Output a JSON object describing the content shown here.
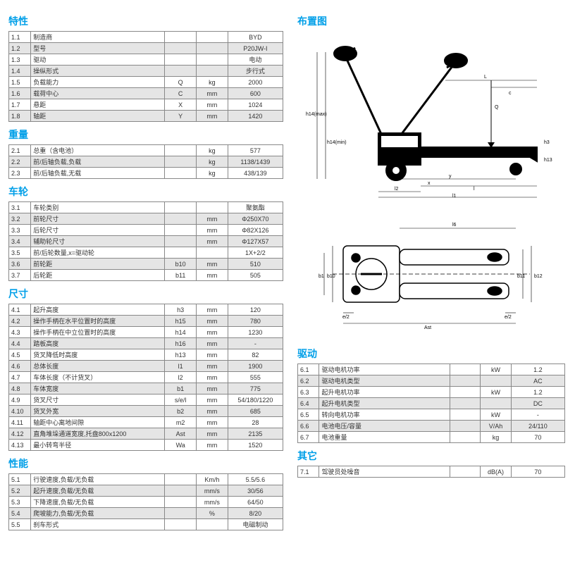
{
  "colors": {
    "accent": "#009fe8",
    "grid": "#888888",
    "alt_row": "#e5e5e5",
    "text": "#333333"
  },
  "left": [
    {
      "title": "特性",
      "rows": [
        {
          "n": "1.1",
          "label": "制造商",
          "sym": "",
          "unit": "",
          "val": "BYD"
        },
        {
          "n": "1.2",
          "label": "型号",
          "sym": "",
          "unit": "",
          "val": "P20JW-I"
        },
        {
          "n": "1.3",
          "label": "驱动",
          "sym": "",
          "unit": "",
          "val": "电动"
        },
        {
          "n": "1.4",
          "label": "操纵形式",
          "sym": "",
          "unit": "",
          "val": "步行式"
        },
        {
          "n": "1.5",
          "label": "负载能力",
          "sym": "Q",
          "unit": "kg",
          "val": "2000"
        },
        {
          "n": "1.6",
          "label": "载荷中心",
          "sym": "C",
          "unit": "mm",
          "val": "600"
        },
        {
          "n": "1.7",
          "label": "悬距",
          "sym": "X",
          "unit": "mm",
          "val": "1024"
        },
        {
          "n": "1.8",
          "label": "轴距",
          "sym": "Y",
          "unit": "mm",
          "val": "1420"
        }
      ]
    },
    {
      "title": "重量",
      "rows": [
        {
          "n": "2.1",
          "label": "总重（含电池）",
          "sym": "",
          "unit": "kg",
          "val": "577"
        },
        {
          "n": "2.2",
          "label": "前/后轴负载,负载",
          "sym": "",
          "unit": "kg",
          "val": "1138/1439"
        },
        {
          "n": "2.3",
          "label": "前/后轴负载,无载",
          "sym": "",
          "unit": "kg",
          "val": "438/139"
        }
      ]
    },
    {
      "title": "车轮",
      "rows": [
        {
          "n": "3.1",
          "label": "车轮类别",
          "sym": "",
          "unit": "",
          "val": "聚氨酯"
        },
        {
          "n": "3.2",
          "label": "前轮尺寸",
          "sym": "",
          "unit": "mm",
          "val": "Φ250X70"
        },
        {
          "n": "3.3",
          "label": "后轮尺寸",
          "sym": "",
          "unit": "mm",
          "val": "Φ82X126"
        },
        {
          "n": "3.4",
          "label": "辅助轮尺寸",
          "sym": "",
          "unit": "mm",
          "val": "Φ127X57"
        },
        {
          "n": "3.5",
          "label": "前/后轮数量,x=驱动轮",
          "sym": "",
          "unit": "",
          "val": "1X+2/2"
        },
        {
          "n": "3.6",
          "label": "前轮距",
          "sym": "b10",
          "unit": "mm",
          "val": "510"
        },
        {
          "n": "3.7",
          "label": "后轮距",
          "sym": "b11",
          "unit": "mm",
          "val": "505"
        }
      ]
    },
    {
      "title": "尺寸",
      "rows": [
        {
          "n": "4.1",
          "label": "起升高度",
          "sym": "h3",
          "unit": "mm",
          "val": "120"
        },
        {
          "n": "4.2",
          "label": "操作手柄在水平位置时的高度",
          "sym": "h15",
          "unit": "mm",
          "val": "780"
        },
        {
          "n": "4.3",
          "label": "操作手柄在中立位置时的高度",
          "sym": "h14",
          "unit": "mm",
          "val": "1230"
        },
        {
          "n": "4.4",
          "label": "踏板高度",
          "sym": "h16",
          "unit": "mm",
          "val": "-"
        },
        {
          "n": "4.5",
          "label": "货叉降低时高度",
          "sym": "h13",
          "unit": "mm",
          "val": "82"
        },
        {
          "n": "4.6",
          "label": "总体长度",
          "sym": "l1",
          "unit": "mm",
          "val": "1900"
        },
        {
          "n": "4.7",
          "label": "车体长度（不计货叉）",
          "sym": "l2",
          "unit": "mm",
          "val": "555"
        },
        {
          "n": "4.8",
          "label": "车体宽度",
          "sym": "b1",
          "unit": "mm",
          "val": "775"
        },
        {
          "n": "4.9",
          "label": "货叉尺寸",
          "sym": "s/e/l",
          "unit": "mm",
          "val": "54/180/1220"
        },
        {
          "n": "4.10",
          "label": "货叉外宽",
          "sym": "b2",
          "unit": "mm",
          "val": "685"
        },
        {
          "n": "4.11",
          "label": "轴距中心离地间隙",
          "sym": "m2",
          "unit": "mm",
          "val": "28"
        },
        {
          "n": "4.12",
          "label": "直角堆垛通道宽度,托盘800x1200",
          "sym": "Ast",
          "unit": "mm",
          "val": "2135"
        },
        {
          "n": "4.13",
          "label": "最小转弯半径",
          "sym": "Wa",
          "unit": "mm",
          "val": "1520"
        }
      ]
    },
    {
      "title": "性能",
      "rows": [
        {
          "n": "5.1",
          "label": "行驶速度,负载/无负载",
          "sym": "",
          "unit": "Km/h",
          "val": "5.5/5.6"
        },
        {
          "n": "5.2",
          "label": "起升速度,负载/无负载",
          "sym": "",
          "unit": "mm/s",
          "val": "30/56"
        },
        {
          "n": "5.3",
          "label": "下降速度,负载/无负载",
          "sym": "",
          "unit": "mm/s",
          "val": "64/50"
        },
        {
          "n": "5.4",
          "label": "爬坡能力,负载/无负载",
          "sym": "",
          "unit": "%",
          "val": "8/20"
        },
        {
          "n": "5.5",
          "label": "刹车形式",
          "sym": "",
          "unit": "",
          "val": "电磁制动"
        }
      ]
    }
  ],
  "right": {
    "layout_title": "布置图",
    "sections": [
      {
        "title": "驱动",
        "rows": [
          {
            "n": "6.1",
            "label": "驱动电机功率",
            "sym": "",
            "unit": "kW",
            "val": "1.2"
          },
          {
            "n": "6.2",
            "label": "驱动电机类型",
            "sym": "",
            "unit": "",
            "val": "AC"
          },
          {
            "n": "6.3",
            "label": "起升电机功率",
            "sym": "",
            "unit": "kW",
            "val": "1.2"
          },
          {
            "n": "6.4",
            "label": "起升电机类型",
            "sym": "",
            "unit": "",
            "val": "DC"
          },
          {
            "n": "6.5",
            "label": "转向电机功率",
            "sym": "",
            "unit": "kW",
            "val": "-"
          },
          {
            "n": "6.6",
            "label": "电池电压/容量",
            "sym": "",
            "unit": "V/Ah",
            "val": "24/110"
          },
          {
            "n": "6.7",
            "label": "电池重量",
            "sym": "",
            "unit": "kg",
            "val": "70"
          }
        ]
      },
      {
        "title": "其它",
        "rows": [
          {
            "n": "7.1",
            "label": "驾驶员处噪音",
            "sym": "",
            "unit": "dB(A)",
            "val": "70"
          }
        ]
      }
    ],
    "diagrams": {
      "side_labels": [
        "h14(max)",
        "h14(min)",
        "L",
        "c",
        "Q",
        "h3",
        "h13",
        "l2",
        "x",
        "y",
        "l",
        "l1"
      ],
      "top_labels": [
        "l6",
        "b1",
        "b10",
        "b11",
        "b12",
        "e/2",
        "e/2",
        "Ast"
      ]
    }
  }
}
